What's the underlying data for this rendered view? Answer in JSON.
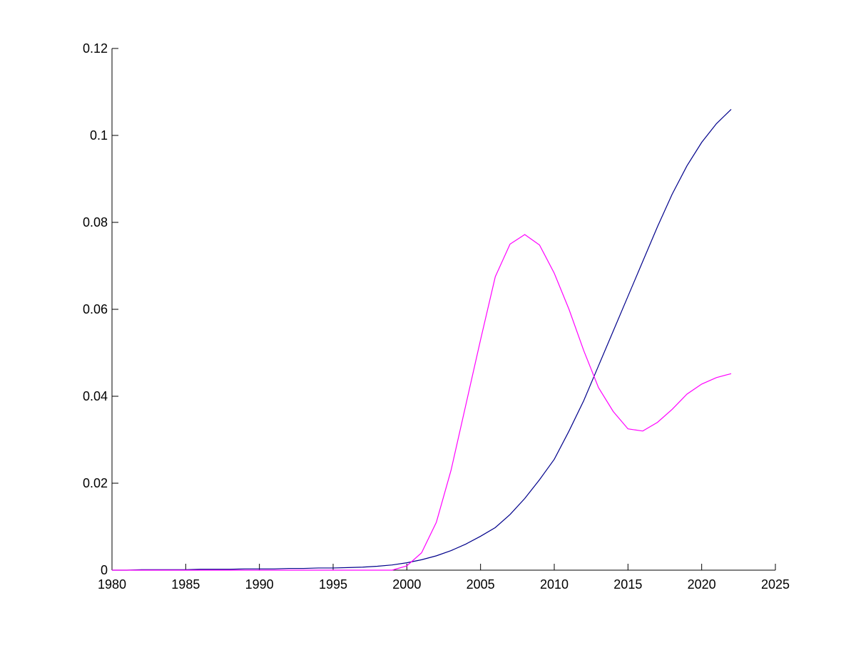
{
  "chart_data": {
    "type": "line",
    "x": [
      1980,
      1981,
      1982,
      1983,
      1984,
      1985,
      1986,
      1987,
      1988,
      1989,
      1990,
      1991,
      1992,
      1993,
      1994,
      1995,
      1996,
      1997,
      1998,
      1999,
      2000,
      2001,
      2002,
      2003,
      2004,
      2005,
      2006,
      2007,
      2008,
      2009,
      2010,
      2011,
      2012,
      2013,
      2014,
      2015,
      2016,
      2017,
      2018,
      2019,
      2020,
      2021,
      2022
    ],
    "series": [
      {
        "color": "#00008b",
        "values": [
          0,
          0,
          0.0001,
          0.0001,
          0.0001,
          0.0001,
          0.0002,
          0.0002,
          0.0002,
          0.0003,
          0.0003,
          0.0003,
          0.0004,
          0.0004,
          0.0005,
          0.0005,
          0.0006,
          0.0007,
          0.0009,
          0.0012,
          0.0017,
          0.0024,
          0.0033,
          0.0045,
          0.006,
          0.0078,
          0.0098,
          0.0128,
          0.0165,
          0.0208,
          0.0255,
          0.032,
          0.039,
          0.047,
          0.055,
          0.063,
          0.071,
          0.079,
          0.0865,
          0.093,
          0.0984,
          0.1027,
          0.106
        ]
      },
      {
        "color": "#ff00ff",
        "values": [
          0,
          0,
          0,
          0,
          0,
          0,
          0,
          0,
          0,
          0,
          0,
          0,
          0,
          0,
          0,
          0,
          0,
          0,
          0,
          0,
          0.001,
          0.004,
          0.011,
          0.023,
          0.038,
          0.053,
          0.0675,
          0.075,
          0.0772,
          0.0748,
          0.0683,
          0.06,
          0.0505,
          0.042,
          0.0365,
          0.0325,
          0.032,
          0.034,
          0.037,
          0.0405,
          0.0428,
          0.0443,
          0.0452
        ]
      }
    ],
    "xlim": [
      1980,
      2025
    ],
    "xticks": [
      1980,
      1985,
      1990,
      1995,
      2000,
      2005,
      2010,
      2015,
      2020,
      2025
    ],
    "ylim": [
      0,
      0.12
    ],
    "yticks": [
      0,
      0.02,
      0.04,
      0.06,
      0.08,
      0.1,
      0.12
    ]
  }
}
